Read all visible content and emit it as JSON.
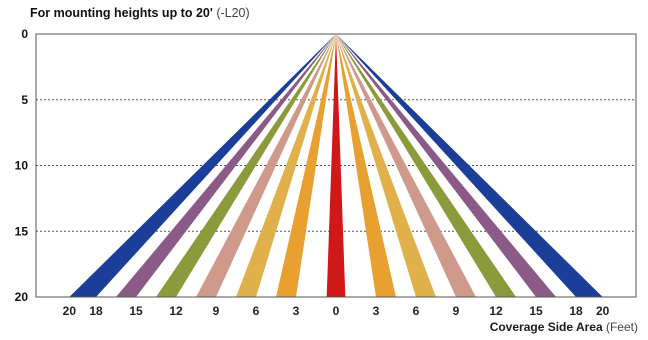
{
  "chart_data": {
    "type": "area",
    "title": "For mounting heights up to 20'",
    "title_suffix": "(-L20)",
    "xlabel": "Coverage Side Area",
    "xlabel_unit": "(Feet)",
    "ylabel": "",
    "y_range": [
      0,
      20
    ],
    "y_ticks": [
      0,
      5,
      10,
      15,
      20
    ],
    "x_range": [
      -22.5,
      22.5
    ],
    "x_tick_labels": [
      "20",
      "18",
      "15",
      "12",
      "9",
      "6",
      "3",
      "0",
      "3",
      "6",
      "9",
      "12",
      "15",
      "18",
      "20"
    ],
    "x_tick_values": [
      -20,
      -18,
      -15,
      -12,
      -9,
      -6,
      -3,
      0,
      3,
      6,
      9,
      12,
      15,
      18,
      20
    ],
    "gridlines": "dashed horizontal at 5, 10, 15",
    "apex": [
      0,
      0
    ],
    "series": [
      {
        "color": "#1b3f99",
        "side": "both",
        "x_at_base": [
          18,
          20
        ]
      },
      {
        "color": "#8c5a86",
        "side": "both",
        "x_at_base": [
          15,
          16.5
        ]
      },
      {
        "color": "#8b9a3a",
        "side": "both",
        "x_at_base": [
          12,
          13.5
        ]
      },
      {
        "color": "#cf9a8c",
        "side": "both",
        "x_at_base": [
          9,
          10.5
        ]
      },
      {
        "color": "#e0b04a",
        "side": "both",
        "x_at_base": [
          6,
          7.5
        ]
      },
      {
        "color": "#e8a030",
        "side": "both",
        "x_at_base": [
          3,
          4.5
        ]
      },
      {
        "color": "#d01818",
        "side": "center",
        "x_at_base": [
          -0.7,
          0.7
        ]
      }
    ]
  }
}
